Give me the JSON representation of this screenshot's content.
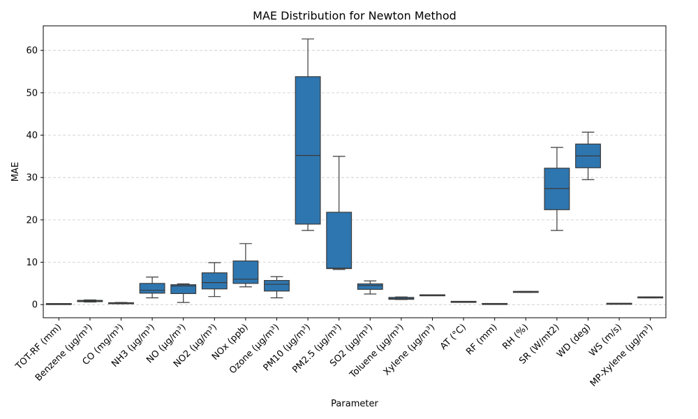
{
  "chart_data": {
    "type": "box",
    "title": "MAE Distribution for Newton Method",
    "xlabel": "Parameter",
    "ylabel": "MAE",
    "ylim": [
      -3.1,
      65.8
    ],
    "yticks": [
      0,
      10,
      20,
      30,
      40,
      50,
      60
    ],
    "grid": "y-dashed",
    "box_color": "#2e76b0",
    "categories": [
      "TOT-RF (mm)",
      "Benzene (µg/m³)",
      "CO (mg/m³)",
      "NH3 (µg/m³)",
      "NO (µg/m³)",
      "NO2 (µg/m³)",
      "NOx (ppb)",
      "Ozone (µg/m³)",
      "PM10 (µg/m³)",
      "PM2.5 (µg/m³)",
      "SO2 (µg/m³)",
      "Toluene (µg/m³)",
      "Xylene (µg/m³)",
      "AT (°C)",
      "RF (mm)",
      "RH (%)",
      "SR (W/mt2)",
      "WD (deg)",
      "WS (m/s)",
      "MP-Xylene (µg/m³)"
    ],
    "boxes": [
      {
        "min": 0.05,
        "q1": 0.08,
        "median": 0.12,
        "q3": 0.18,
        "max": 0.2
      },
      {
        "min": 0.6,
        "q1": 0.7,
        "median": 0.9,
        "q3": 1.0,
        "max": 1.1
      },
      {
        "min": 0.2,
        "q1": 0.25,
        "median": 0.3,
        "q3": 0.4,
        "max": 0.5
      },
      {
        "min": 1.6,
        "q1": 2.7,
        "median": 3.4,
        "q3": 5.0,
        "max": 6.5
      },
      {
        "min": 0.5,
        "q1": 2.6,
        "median": 4.4,
        "q3": 4.7,
        "max": 4.9
      },
      {
        "min": 1.9,
        "q1": 3.7,
        "median": 5.2,
        "q3": 7.5,
        "max": 9.9
      },
      {
        "min": 4.2,
        "q1": 5.0,
        "median": 6.0,
        "q3": 10.3,
        "max": 14.4
      },
      {
        "min": 1.6,
        "q1": 3.2,
        "median": 4.8,
        "q3": 5.7,
        "max": 6.6
      },
      {
        "min": 17.5,
        "q1": 19.0,
        "median": 35.2,
        "q3": 53.8,
        "max": 62.7
      },
      {
        "min": 8.3,
        "q1": 8.5,
        "median": 8.6,
        "q3": 21.8,
        "max": 35.0
      },
      {
        "min": 2.5,
        "q1": 3.6,
        "median": 4.5,
        "q3": 4.9,
        "max": 5.6
      },
      {
        "min": 1.2,
        "q1": 1.25,
        "median": 1.4,
        "q3": 1.7,
        "max": 1.8
      },
      {
        "min": 2.1,
        "q1": 2.15,
        "median": 2.2,
        "q3": 2.25,
        "max": 2.3
      },
      {
        "min": 0.6,
        "q1": 0.62,
        "median": 0.65,
        "q3": 0.68,
        "max": 0.7
      },
      {
        "min": 0.1,
        "q1": 0.12,
        "median": 0.15,
        "q3": 0.18,
        "max": 0.2
      },
      {
        "min": 2.9,
        "q1": 2.95,
        "median": 3.0,
        "q3": 3.05,
        "max": 3.1
      },
      {
        "min": 17.5,
        "q1": 22.4,
        "median": 27.4,
        "q3": 32.2,
        "max": 37.1
      },
      {
        "min": 29.5,
        "q1": 32.3,
        "median": 35.1,
        "q3": 37.9,
        "max": 40.7
      },
      {
        "min": 0.15,
        "q1": 0.18,
        "median": 0.2,
        "q3": 0.22,
        "max": 0.25
      },
      {
        "min": 1.6,
        "q1": 1.65,
        "median": 1.7,
        "q3": 1.75,
        "max": 1.8
      }
    ]
  }
}
